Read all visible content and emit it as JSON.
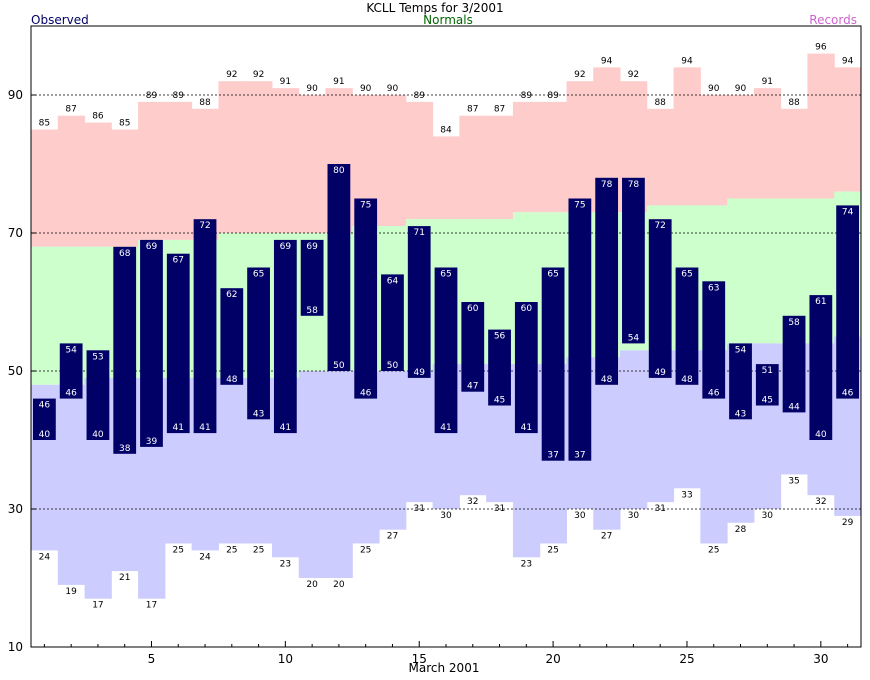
{
  "title": "KCLL Temps for 3/2001",
  "legend": {
    "observed": "Observed",
    "normals": "Normals",
    "records": "Records"
  },
  "colors": {
    "observed": "#000066",
    "observed_text": "#ffffff",
    "normal_high_band": "#ffcccc",
    "normal_mid_band": "#ccffcc",
    "normal_low_band": "#ccccff",
    "normals_legend": "#006600",
    "records_legend": "#cc66cc",
    "observed_legend": "#000066"
  },
  "chart_data": {
    "type": "bar",
    "title": "KCLL Temps for 3/2001",
    "xlabel": "March 2001",
    "ylabel": "",
    "ylim": [
      10,
      100
    ],
    "xlim": [
      1,
      31
    ],
    "yticks": [
      10,
      30,
      50,
      70,
      90
    ],
    "xticks": [
      5,
      10,
      15,
      20,
      25,
      30
    ],
    "grid": "dashed horizontal at 30, 50, 70, 90",
    "days": [
      1,
      2,
      3,
      4,
      5,
      6,
      7,
      8,
      9,
      10,
      11,
      12,
      13,
      14,
      15,
      16,
      17,
      18,
      19,
      20,
      21,
      22,
      23,
      24,
      25,
      26,
      27,
      28,
      29,
      30,
      31
    ],
    "series": [
      {
        "name": "Observed",
        "role": "observed_high",
        "values": [
          46,
          54,
          53,
          68,
          69,
          67,
          72,
          62,
          65,
          69,
          69,
          80,
          75,
          64,
          71,
          65,
          60,
          56,
          60,
          65,
          75,
          78,
          78,
          72,
          65,
          63,
          54,
          51,
          58,
          61,
          74
        ]
      },
      {
        "name": "Observed",
        "role": "observed_low",
        "values": [
          40,
          46,
          40,
          38,
          39,
          41,
          41,
          48,
          43,
          41,
          58,
          50,
          46,
          50,
          49,
          41,
          47,
          45,
          41,
          37,
          37,
          48,
          54,
          49,
          48,
          46,
          43,
          45,
          44,
          40,
          46
        ]
      },
      {
        "name": "Records",
        "role": "record_high",
        "values": [
          85,
          87,
          86,
          85,
          89,
          89,
          88,
          92,
          92,
          91,
          90,
          91,
          90,
          90,
          89,
          84,
          87,
          87,
          89,
          89,
          92,
          94,
          92,
          88,
          94,
          90,
          90,
          91,
          88,
          96,
          94
        ]
      },
      {
        "name": "Records",
        "role": "record_low",
        "values": [
          24,
          19,
          17,
          21,
          17,
          25,
          24,
          25,
          25,
          23,
          20,
          20,
          25,
          27,
          31,
          30,
          32,
          31,
          23,
          25,
          30,
          27,
          30,
          31,
          33,
          25,
          28,
          30,
          35,
          32,
          29
        ]
      },
      {
        "name": "Normals",
        "role": "normal_high",
        "values": [
          68,
          68,
          68,
          68,
          69,
          69,
          69,
          70,
          70,
          70,
          70,
          70,
          71,
          71,
          72,
          72,
          72,
          72,
          73,
          73,
          73,
          73,
          73,
          74,
          74,
          74,
          75,
          75,
          75,
          75,
          76
        ]
      },
      {
        "name": "Normals",
        "role": "normal_low",
        "values": [
          48,
          48,
          49,
          49,
          49,
          49,
          49,
          49,
          49,
          49,
          50,
          50,
          50,
          50,
          50,
          51,
          51,
          51,
          51,
          51,
          52,
          52,
          53,
          53,
          53,
          53,
          54,
          54,
          54,
          54,
          55
        ]
      }
    ]
  }
}
